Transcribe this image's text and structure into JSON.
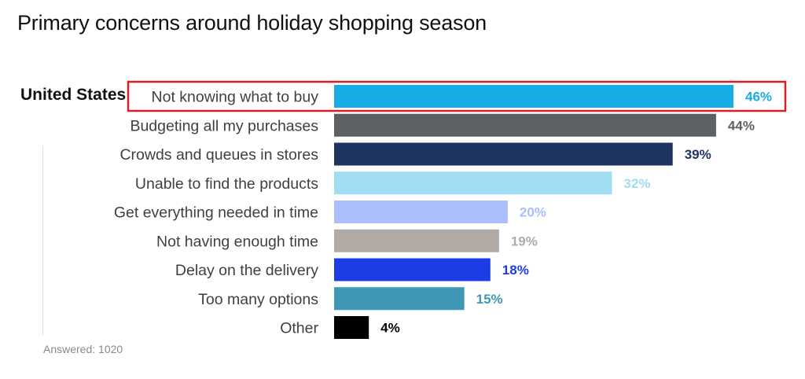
{
  "chart_data": {
    "type": "bar",
    "orientation": "horizontal",
    "title": "Primary concerns around holiday shopping season",
    "group": "United States",
    "categories": [
      "Not knowing what to buy",
      "Budgeting all my purchases",
      "Crowds and queues in stores",
      "Unable to find the products",
      "Get everything needed in time",
      "Not having enough time",
      "Delay on the delivery",
      "Too many options",
      "Other"
    ],
    "values": [
      46,
      44,
      39,
      32,
      20,
      19,
      18,
      15,
      4
    ],
    "value_labels": [
      "46%",
      "44%",
      "39%",
      "32%",
      "20%",
      "19%",
      "18%",
      "15%",
      "4%"
    ],
    "colors": [
      "#17ace3",
      "#5d6163",
      "#1d3360",
      "#a0dcf2",
      "#abbdfc",
      "#b2aaa5",
      "#1c3de6",
      "#3f97b6",
      "#000000"
    ],
    "highlight_category": "Not knowing what to buy",
    "highlight_color": "#d81f26",
    "xlim": [
      0,
      46
    ],
    "grid": false,
    "legend": "none",
    "footnote": "Answered: 1020"
  }
}
